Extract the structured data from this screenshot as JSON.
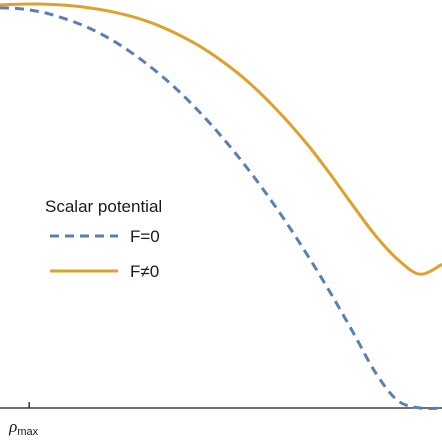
{
  "chart_data": {
    "type": "line",
    "title": "",
    "xlabel": "",
    "ylabel": "",
    "xlim": [
      0,
      1
    ],
    "ylim": [
      0,
      1
    ],
    "grid": false,
    "x_ticks": [
      {
        "x": 0.066,
        "label_main": "ρ",
        "label_sub": "max"
      }
    ],
    "legend": {
      "title": "Scalar potential",
      "placement": "center-left"
    },
    "colors": {
      "axis": "#1a1a1a"
    },
    "series": [
      {
        "name": "F=0",
        "style": "dashed",
        "color": "#5b7fb3",
        "x": [
          0.0,
          0.05,
          0.1,
          0.15,
          0.2,
          0.25,
          0.3,
          0.35,
          0.4,
          0.45,
          0.5,
          0.55,
          0.6,
          0.65,
          0.7,
          0.75,
          0.8,
          0.85,
          0.9,
          0.95,
          1.0
        ],
        "y": [
          0.981,
          0.978,
          0.969,
          0.953,
          0.932,
          0.904,
          0.869,
          0.828,
          0.781,
          0.727,
          0.667,
          0.601,
          0.529,
          0.451,
          0.367,
          0.278,
          0.183,
          0.086,
          0.018,
          0.0,
          0.0
        ]
      },
      {
        "name": "F≠0",
        "style": "solid",
        "color": "#e0a02a",
        "x": [
          0.0,
          0.05,
          0.1,
          0.15,
          0.2,
          0.25,
          0.3,
          0.35,
          0.4,
          0.45,
          0.5,
          0.55,
          0.6,
          0.65,
          0.7,
          0.75,
          0.8,
          0.85,
          0.9,
          0.95,
          1.0
        ],
        "y": [
          0.988,
          0.99,
          0.99,
          0.987,
          0.981,
          0.972,
          0.959,
          0.941,
          0.917,
          0.888,
          0.852,
          0.81,
          0.76,
          0.703,
          0.64,
          0.569,
          0.494,
          0.422,
          0.364,
          0.328,
          0.352
        ]
      }
    ]
  }
}
